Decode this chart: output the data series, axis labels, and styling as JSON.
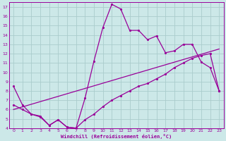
{
  "xlabel": "Windchill (Refroidissement éolien,°C)",
  "xlim": [
    -0.5,
    23.5
  ],
  "ylim": [
    4,
    17.5
  ],
  "xticks": [
    0,
    1,
    2,
    3,
    4,
    5,
    6,
    7,
    8,
    9,
    10,
    11,
    12,
    13,
    14,
    15,
    16,
    17,
    18,
    19,
    20,
    21,
    22,
    23
  ],
  "yticks": [
    4,
    5,
    6,
    7,
    8,
    9,
    10,
    11,
    12,
    13,
    14,
    15,
    16,
    17
  ],
  "bg_color": "#cce8e8",
  "grid_color": "#aacccc",
  "line_color": "#990099",
  "upper_curve": {
    "x": [
      0,
      1,
      2,
      3,
      4,
      5,
      6,
      7,
      8,
      9,
      10,
      11,
      12,
      13,
      14,
      15,
      16,
      17,
      18,
      19,
      20,
      21,
      22,
      23
    ],
    "y": [
      8.5,
      6.5,
      5.5,
      5.2,
      4.3,
      4.9,
      4.1,
      4.0,
      7.2,
      11.2,
      14.8,
      17.3,
      16.8,
      14.5,
      14.5,
      13.5,
      13.9,
      12.1,
      12.3,
      13.0,
      13.0,
      11.1,
      10.5,
      8.0
    ]
  },
  "lower_curve": {
    "x": [
      0,
      1,
      2,
      3,
      4,
      5,
      6,
      7,
      8,
      9,
      10,
      11,
      12,
      13,
      14,
      15,
      16,
      17,
      18,
      19,
      20,
      21,
      22,
      23
    ],
    "y": [
      6.5,
      6.0,
      5.5,
      5.3,
      4.3,
      4.9,
      4.1,
      4.0,
      4.9,
      5.5,
      6.3,
      7.0,
      7.5,
      8.0,
      8.5,
      8.8,
      9.3,
      9.8,
      10.5,
      11.0,
      11.5,
      11.8,
      12.0,
      8.0
    ]
  },
  "diag_line": {
    "x": [
      0,
      23
    ],
    "y": [
      6.0,
      12.5
    ]
  }
}
